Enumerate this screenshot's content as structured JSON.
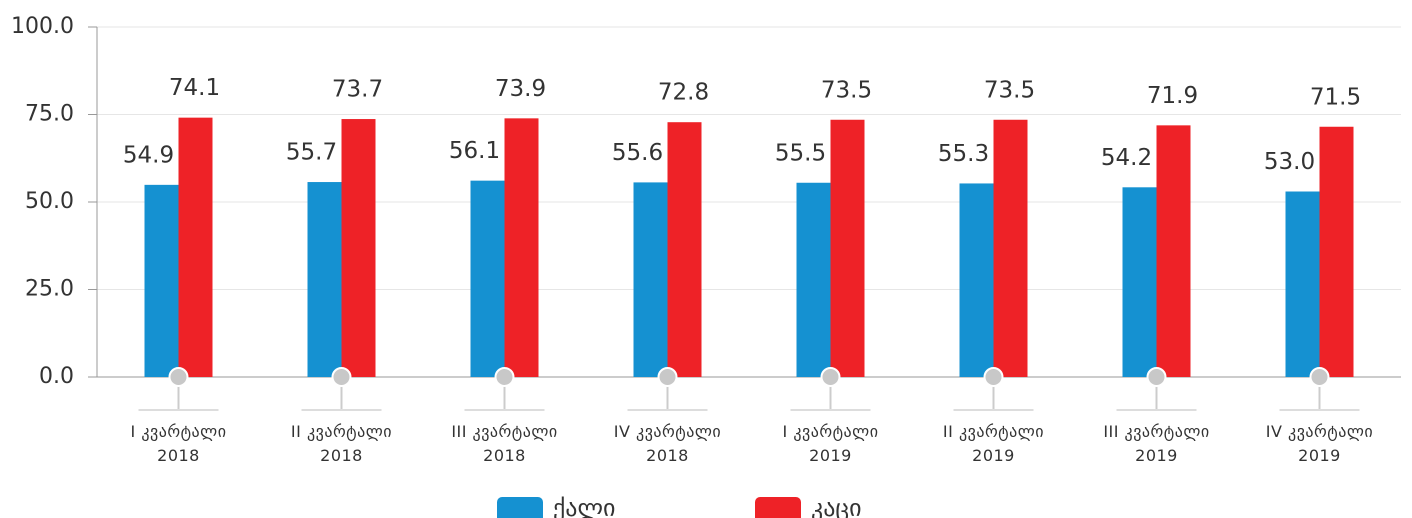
{
  "chart_data": {
    "type": "bar",
    "categories": [
      [
        "I კვარტალი",
        "2018"
      ],
      [
        "II კვარტალი",
        "2018"
      ],
      [
        "III კვარტალი",
        "2018"
      ],
      [
        "IV კვარტალი",
        "2018"
      ],
      [
        "I კვარტალი",
        "2019"
      ],
      [
        "II კვარტალი",
        "2019"
      ],
      [
        "III კვარტალი",
        "2019"
      ],
      [
        "IV კვარტალი",
        "2019"
      ]
    ],
    "series": [
      {
        "name": "ქალი",
        "color": "#1591d1",
        "values": [
          54.9,
          55.7,
          56.1,
          55.6,
          55.5,
          55.3,
          54.2,
          53.0
        ],
        "value_labels": [
          "54.9",
          "55.7",
          "56.1",
          "55.6",
          "55.5",
          "55.3",
          "54.2",
          "53.0"
        ]
      },
      {
        "name": "კაცი",
        "color": "#ee2227",
        "values": [
          74.1,
          73.7,
          73.9,
          72.8,
          73.5,
          73.5,
          71.9,
          71.5
        ],
        "value_labels": [
          "74.1",
          "73.7",
          "73.9",
          "72.8",
          "73.5",
          "73.5",
          "71.9",
          "71.5"
        ]
      }
    ],
    "ylim": [
      0,
      100
    ],
    "yticks": [
      {
        "value": 0,
        "label": "0.0"
      },
      {
        "value": 25,
        "label": "25.0"
      },
      {
        "value": 50,
        "label": "50.0"
      },
      {
        "value": 75,
        "label": "75.0"
      },
      {
        "value": 100,
        "label": "100.0"
      }
    ],
    "grid": true,
    "legend": "bottom"
  }
}
